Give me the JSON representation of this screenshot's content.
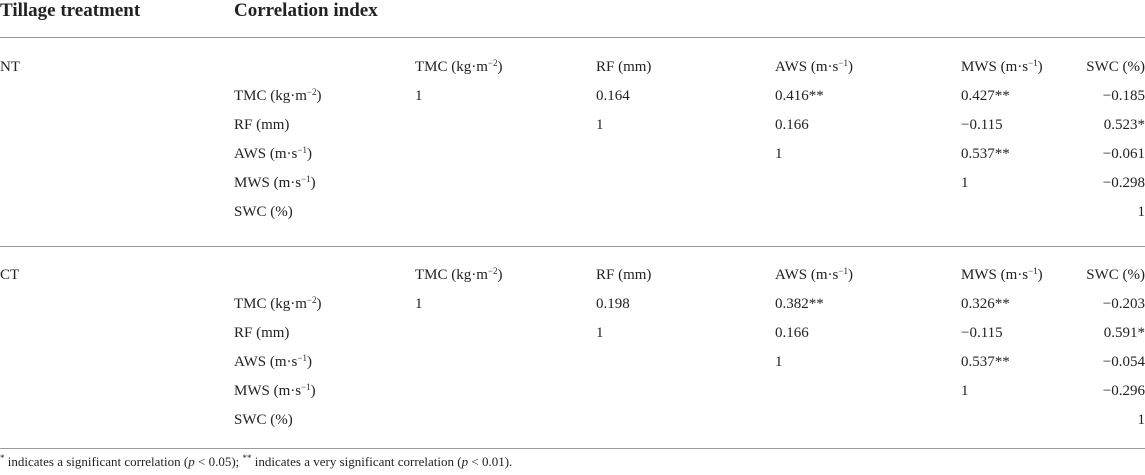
{
  "header": {
    "col1": "Tillage treatment",
    "col2": "Correlation index"
  },
  "groups": [
    {
      "name": "NT",
      "columns": [
        {
          "text": "TMC (kg·m",
          "sup": "−2",
          "tail": ")"
        },
        {
          "text": "RF (mm)",
          "sup": "",
          "tail": ""
        },
        {
          "text": "AWS (m·s",
          "sup": "−1",
          "tail": ")"
        },
        {
          "text": "MWS (m·s",
          "sup": "−1",
          "tail": ")"
        },
        {
          "text": "SWC (%)",
          "sup": "",
          "tail": ""
        }
      ],
      "rows": [
        {
          "label": {
            "text": "TMC (kg·m",
            "sup": "−2",
            "tail": ")"
          },
          "cells": [
            "1",
            "0.164",
            "0.416**",
            "0.427**",
            "−0.185"
          ]
        },
        {
          "label": {
            "text": "RF (mm)",
            "sup": "",
            "tail": ""
          },
          "cells": [
            "",
            "1",
            "0.166",
            "−0.115",
            "0.523*"
          ]
        },
        {
          "label": {
            "text": "AWS (m·s",
            "sup": "−1",
            "tail": ")"
          },
          "cells": [
            "",
            "",
            "1",
            "0.537**",
            "−0.061"
          ]
        },
        {
          "label": {
            "text": "MWS (m·s",
            "sup": "−1",
            "tail": ")"
          },
          "cells": [
            "",
            "",
            "",
            "1",
            "−0.298"
          ]
        },
        {
          "label": {
            "text": "SWC (%)",
            "sup": "",
            "tail": ""
          },
          "cells": [
            "",
            "",
            "",
            "",
            "1"
          ]
        }
      ]
    },
    {
      "name": "CT",
      "columns": [
        {
          "text": "TMC (kg·m",
          "sup": "−2",
          "tail": ")"
        },
        {
          "text": "RF (mm)",
          "sup": "",
          "tail": ""
        },
        {
          "text": "AWS (m·s",
          "sup": "−1",
          "tail": ")"
        },
        {
          "text": "MWS (m·s",
          "sup": "−1",
          "tail": ")"
        },
        {
          "text": "SWC (%)",
          "sup": "",
          "tail": ""
        }
      ],
      "rows": [
        {
          "label": {
            "text": "TMC (kg·m",
            "sup": "−2",
            "tail": ")"
          },
          "cells": [
            "1",
            "0.198",
            "0.382**",
            "0.326**",
            "−0.203"
          ]
        },
        {
          "label": {
            "text": "RF (mm)",
            "sup": "",
            "tail": ""
          },
          "cells": [
            "",
            "1",
            "0.166",
            "−0.115",
            "0.591*"
          ]
        },
        {
          "label": {
            "text": "AWS (m·s",
            "sup": "−1",
            "tail": ")"
          },
          "cells": [
            "",
            "",
            "1",
            "0.537**",
            "−0.054"
          ]
        },
        {
          "label": {
            "text": "MWS (m·s",
            "sup": "−1",
            "tail": ")"
          },
          "cells": [
            "",
            "",
            "",
            "1",
            "−0.296"
          ]
        },
        {
          "label": {
            "text": "SWC (%)",
            "sup": "",
            "tail": ""
          },
          "cells": [
            "",
            "",
            "",
            "",
            "1"
          ]
        }
      ]
    }
  ],
  "footnote": {
    "s1": "*",
    "t1": " indicates a significant correlation (",
    "p1": "p",
    "t2": " < 0.05); ",
    "s2": "**",
    "t3": " indicates a very significant correlation (",
    "p2": "p",
    "t4": " < 0.01)."
  }
}
